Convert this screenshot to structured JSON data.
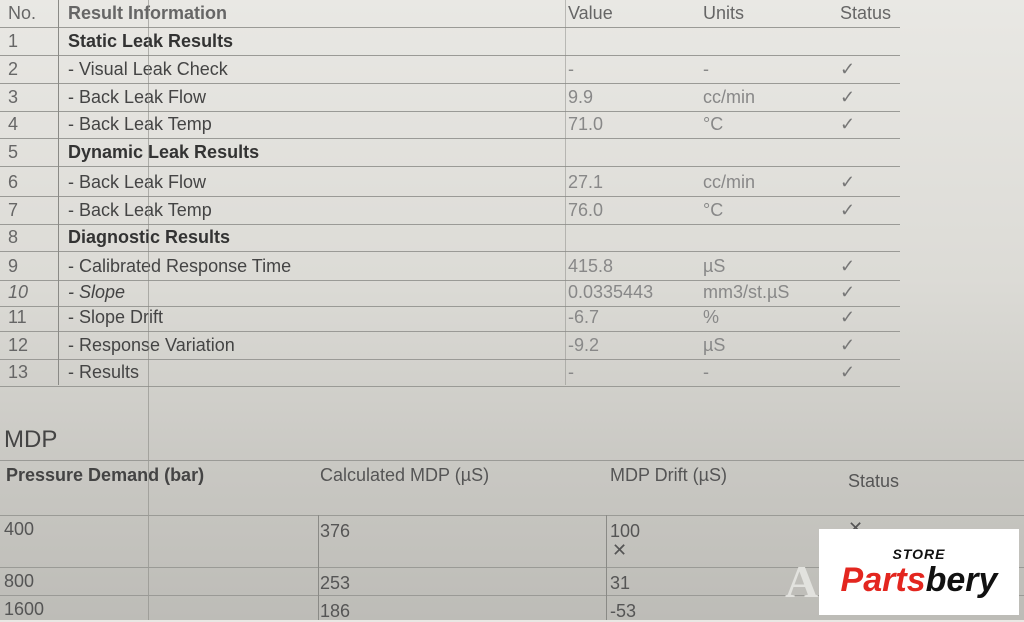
{
  "results_table": {
    "headers": {
      "no": "No.",
      "info": "Result Information",
      "value": "Value",
      "units": "Units",
      "status": "Status"
    },
    "rows": [
      {
        "no": "1",
        "info": "Static Leak Results",
        "value": "",
        "units": "",
        "status": "",
        "style": "bold"
      },
      {
        "no": "2",
        "info": " - Visual Leak Check",
        "value": "-",
        "units": "-",
        "status": "✓"
      },
      {
        "no": "3",
        "info": " - Back Leak Flow",
        "value": "9.9",
        "units": "cc/min",
        "status": "✓"
      },
      {
        "no": "4",
        "info": " - Back Leak Temp",
        "value": "71.0",
        "units": "°C",
        "status": "✓"
      },
      {
        "no": "5",
        "info": "Dynamic Leak Results",
        "value": "",
        "units": "",
        "status": "",
        "style": "bold"
      },
      {
        "no": "6",
        "info": " - Back Leak Flow",
        "value": "27.1",
        "units": "cc/min",
        "status": "✓"
      },
      {
        "no": "7",
        "info": " - Back Leak Temp",
        "value": "76.0",
        "units": "°C",
        "status": "✓"
      },
      {
        "no": "8",
        "info": "Diagnostic Results",
        "value": "",
        "units": "",
        "status": "",
        "style": "bold"
      },
      {
        "no": "9",
        "info": " - Calibrated Response Time",
        "value": "415.8",
        "units": "µS",
        "status": "✓"
      },
      {
        "no": "10",
        "info": " - Slope",
        "value": "0.0335443",
        "units": "mm3/st.µS",
        "status": "✓",
        "style": "italic"
      },
      {
        "no": "11",
        "info": "- Slope Drift",
        "value": "-6.7",
        "units": "%",
        "status": "✓"
      },
      {
        "no": "12",
        "info": "- Response Variation",
        "value": "-9.2",
        "units": "µS",
        "status": "✓"
      },
      {
        "no": "13",
        "info": "- Results",
        "value": "-",
        "units": "-",
        "status": "✓"
      }
    ]
  },
  "mdp": {
    "title": "MDP",
    "headers": {
      "pressure": "Pressure Demand (bar)",
      "calc": "Calculated MDP (µS)",
      "drift": "MDP Drift (µS)",
      "status": "Status"
    },
    "rows": [
      {
        "pressure": "400",
        "calc": "376",
        "drift": "100",
        "mark": "✕",
        "status": "✕"
      },
      {
        "pressure": "800",
        "calc": "253",
        "drift": "31",
        "mark": "",
        "status": ""
      },
      {
        "pressure": "1600",
        "calc": "186",
        "drift": "-53",
        "mark": "",
        "status": ""
      }
    ]
  },
  "logo": {
    "store": "STORE",
    "brand_a": "Parts",
    "brand_b": "bery",
    "colors": {
      "red": "#e3261f",
      "black": "#111111"
    }
  }
}
